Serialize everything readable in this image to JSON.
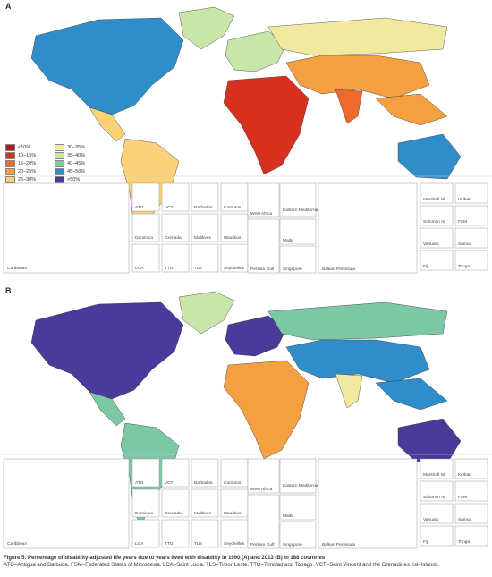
{
  "panels": [
    {
      "letter": "A",
      "insets": {
        "caribbean": "Caribbean",
        "small": [
          "ATG",
          "VCT",
          "Barbados",
          "Comoros",
          "Dominica",
          "Grenada",
          "Maldives",
          "Mauritius",
          "LCA",
          "TTO",
          "TLS",
          "Seychelles"
        ],
        "west_africa": "West Africa",
        "eastern_med": "Eastern\nMediterranean",
        "malta": "Malta",
        "persian_gulf": "Persian Gulf",
        "singapore": "Singapore",
        "balkan": "Balkan Peninsula",
        "pacific": [
          "Marshall Isl",
          "Kiribati",
          "Solomon Isl",
          "FSM",
          "Vanuatu",
          "Samoa",
          "Fiji",
          "Tonga"
        ]
      }
    },
    {
      "letter": "B",
      "insets": {
        "caribbean": "Caribbean",
        "small": [
          "ATG",
          "VCT",
          "Barbados",
          "Comoros",
          "Dominica",
          "Grenada",
          "Maldives",
          "Mauritius",
          "LCA",
          "TTO",
          "TLS",
          "Seychelles"
        ],
        "west_africa": "West Africa",
        "eastern_med": "Eastern\nMediterranean",
        "malta": "Malta",
        "persian_gulf": "Persian Gulf",
        "singapore": "Singapore",
        "balkan": "Balkan Peninsula",
        "pacific": [
          "Marshall Isl",
          "Kiribati",
          "Solomon Isl",
          "FSM",
          "Vanuatu",
          "Samoa",
          "Fiji",
          "Tonga"
        ]
      }
    }
  ],
  "legend": {
    "items": [
      {
        "label": "<10%",
        "color": "#b2182b"
      },
      {
        "label": "30–35%",
        "color": "#f2e9a0"
      },
      {
        "label": "10–15%",
        "color": "#d7301f"
      },
      {
        "label": "35–40%",
        "color": "#c7e6a8"
      },
      {
        "label": "15–20%",
        "color": "#ef6a2e"
      },
      {
        "label": "40–45%",
        "color": "#7cc8a4"
      },
      {
        "label": "20–25%",
        "color": "#f4a040"
      },
      {
        "label": "45–50%",
        "color": "#2f8ec9"
      },
      {
        "label": "25–30%",
        "color": "#fbd27a"
      },
      {
        "label": ">50%",
        "color": "#4a3a9a"
      }
    ]
  },
  "caption": {
    "title": "Figure 5: Percentage of disability-adjusted life years due to years lived with disability in 1990 (A) and 2013 (B) in 188 countries",
    "note": "ATG=Antigua and Barbuda. FSM=Federated States of Micronesia. LCA=Saint Lucia. TLS=Timor-Leste. TTO=Trinidad and Tobago. VCT=Saint Vincent and the Grenadines. Isl=Islands."
  },
  "palette": {
    "a": {
      "na": "#2f8ec9",
      "latam": "#fbd27a",
      "africa": "#d7301f",
      "europe": "#c7e6a8",
      "russia": "#f2e9a0",
      "asia": "#f4a040",
      "india": "#ef6a2e",
      "aus": "#2f8ec9"
    },
    "b": {
      "na": "#4a3a9a",
      "latam": "#7cc8a4",
      "africa": "#f4a040",
      "europe": "#4a3a9a",
      "russia": "#7cc8a4",
      "asia": "#2f8ec9",
      "india": "#f2e9a0",
      "aus": "#4a3a9a"
    }
  }
}
